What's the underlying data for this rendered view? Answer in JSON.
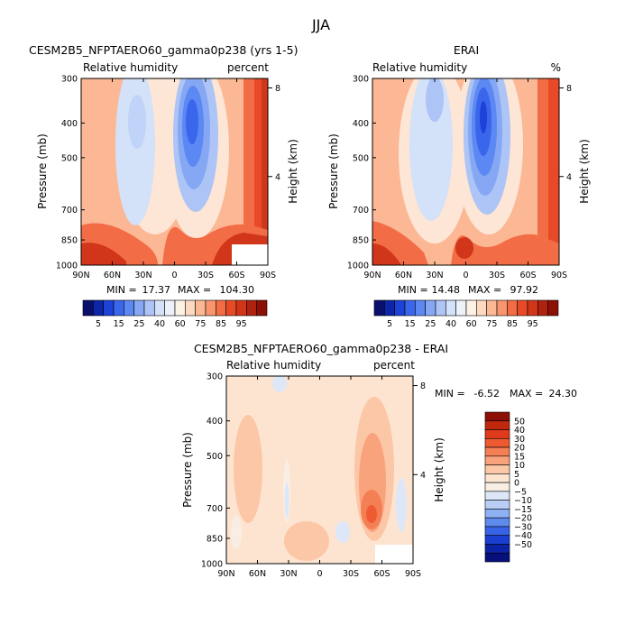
{
  "figure": {
    "title": "JJA"
  },
  "chart_data": [
    {
      "type": "heatmap",
      "name": "model",
      "title": "CESM2B5_NFPTAERO60_gamma0p238 (yrs 1-5)",
      "left_label": "Relative humidity",
      "right_label": "percent",
      "xlabel": "",
      "ylabel": "Pressure (mb)",
      "ylabel_right": "Height (km)",
      "x_ticks": [
        "90N",
        "60N",
        "30N",
        "0",
        "30S",
        "60S",
        "90S"
      ],
      "x_values": [
        90,
        60,
        30,
        0,
        -30,
        -60,
        -90
      ],
      "y_ticks": [
        "300",
        "400",
        "500",
        "700",
        "850",
        "1000"
      ],
      "y_values": [
        300,
        400,
        500,
        700,
        850,
        1000
      ],
      "height_ticks": [
        "8",
        "4"
      ],
      "height_values": [
        8,
        4
      ],
      "min_label": "MIN =",
      "min_value": "17.37",
      "max_label": "MAX =",
      "max_value": "104.30",
      "colorbar": {
        "levels": [
          "5",
          "15",
          "25",
          "40",
          "60",
          "75",
          "85",
          "95"
        ],
        "colors": [
          "#08106b",
          "#0d25a8",
          "#1c42d8",
          "#3a66ec",
          "#5b88f2",
          "#86a8f4",
          "#adc4f6",
          "#d3e1f9",
          "#edf1f8",
          "#fdf3e4",
          "#fdd9c0",
          "#fcb795",
          "#f9956c",
          "#f26c45",
          "#e84a28",
          "#d1361a",
          "#b02210",
          "#8c1005"
        ]
      }
    },
    {
      "type": "heatmap",
      "name": "obs",
      "title": "ERAI",
      "left_label": "Relative humidity",
      "right_label": "%",
      "xlabel": "",
      "ylabel": "Pressure (mb)",
      "ylabel_right": "Height (km)",
      "x_ticks": [
        "90N",
        "60N",
        "30N",
        "0",
        "30S",
        "60S",
        "90S"
      ],
      "x_values": [
        90,
        60,
        30,
        0,
        -30,
        -60,
        -90
      ],
      "y_ticks": [
        "300",
        "400",
        "500",
        "700",
        "850",
        "1000"
      ],
      "y_values": [
        300,
        400,
        500,
        700,
        850,
        1000
      ],
      "height_ticks": [
        "8",
        "4"
      ],
      "height_values": [
        8,
        4
      ],
      "min_label": "MIN =",
      "min_value": "14.48",
      "max_label": "MAX =",
      "max_value": "97.92",
      "colorbar": {
        "levels": [
          "5",
          "15",
          "25",
          "40",
          "60",
          "75",
          "85",
          "95"
        ],
        "colors": [
          "#08106b",
          "#0d25a8",
          "#1c42d8",
          "#3a66ec",
          "#5b88f2",
          "#86a8f4",
          "#adc4f6",
          "#d3e1f9",
          "#edf1f8",
          "#fdf3e4",
          "#fdd9c0",
          "#fcb795",
          "#f9956c",
          "#f26c45",
          "#e84a28",
          "#d1361a",
          "#b02210",
          "#8c1005"
        ]
      }
    },
    {
      "type": "heatmap",
      "name": "diff",
      "title": "CESM2B5_NFPTAERO60_gamma0p238 - ERAI",
      "left_label": "Relative humidity",
      "right_label": "percent",
      "xlabel": "",
      "ylabel": "Pressure (mb)",
      "ylabel_right": "Height (km)",
      "x_ticks": [
        "90N",
        "60N",
        "30N",
        "0",
        "30S",
        "60S",
        "90S"
      ],
      "x_values": [
        90,
        60,
        30,
        0,
        -30,
        -60,
        -90
      ],
      "y_ticks": [
        "300",
        "400",
        "500",
        "700",
        "850",
        "1000"
      ],
      "y_values": [
        300,
        400,
        500,
        700,
        850,
        1000
      ],
      "height_ticks": [
        "8",
        "4"
      ],
      "height_values": [
        8,
        4
      ],
      "min_label": "MIN =",
      "min_value": "-6.52",
      "max_label": "MAX =",
      "max_value": "24.30",
      "colorbar": {
        "levels": [
          "50",
          "40",
          "30",
          "20",
          "15",
          "10",
          "5",
          "0",
          "−5",
          "−10",
          "−15",
          "−20",
          "−30",
          "−40",
          "−50"
        ],
        "colors": [
          "#8c1005",
          "#c0280e",
          "#e03a1c",
          "#ee5a32",
          "#f47f55",
          "#f9a37d",
          "#fcc7a6",
          "#fde4d1",
          "#f9eee4",
          "#dde7f7",
          "#b9cdf5",
          "#8fb0f2",
          "#5f8aee",
          "#3763e6",
          "#1a3fd0",
          "#0c23a6",
          "#06107a"
        ]
      }
    }
  ]
}
